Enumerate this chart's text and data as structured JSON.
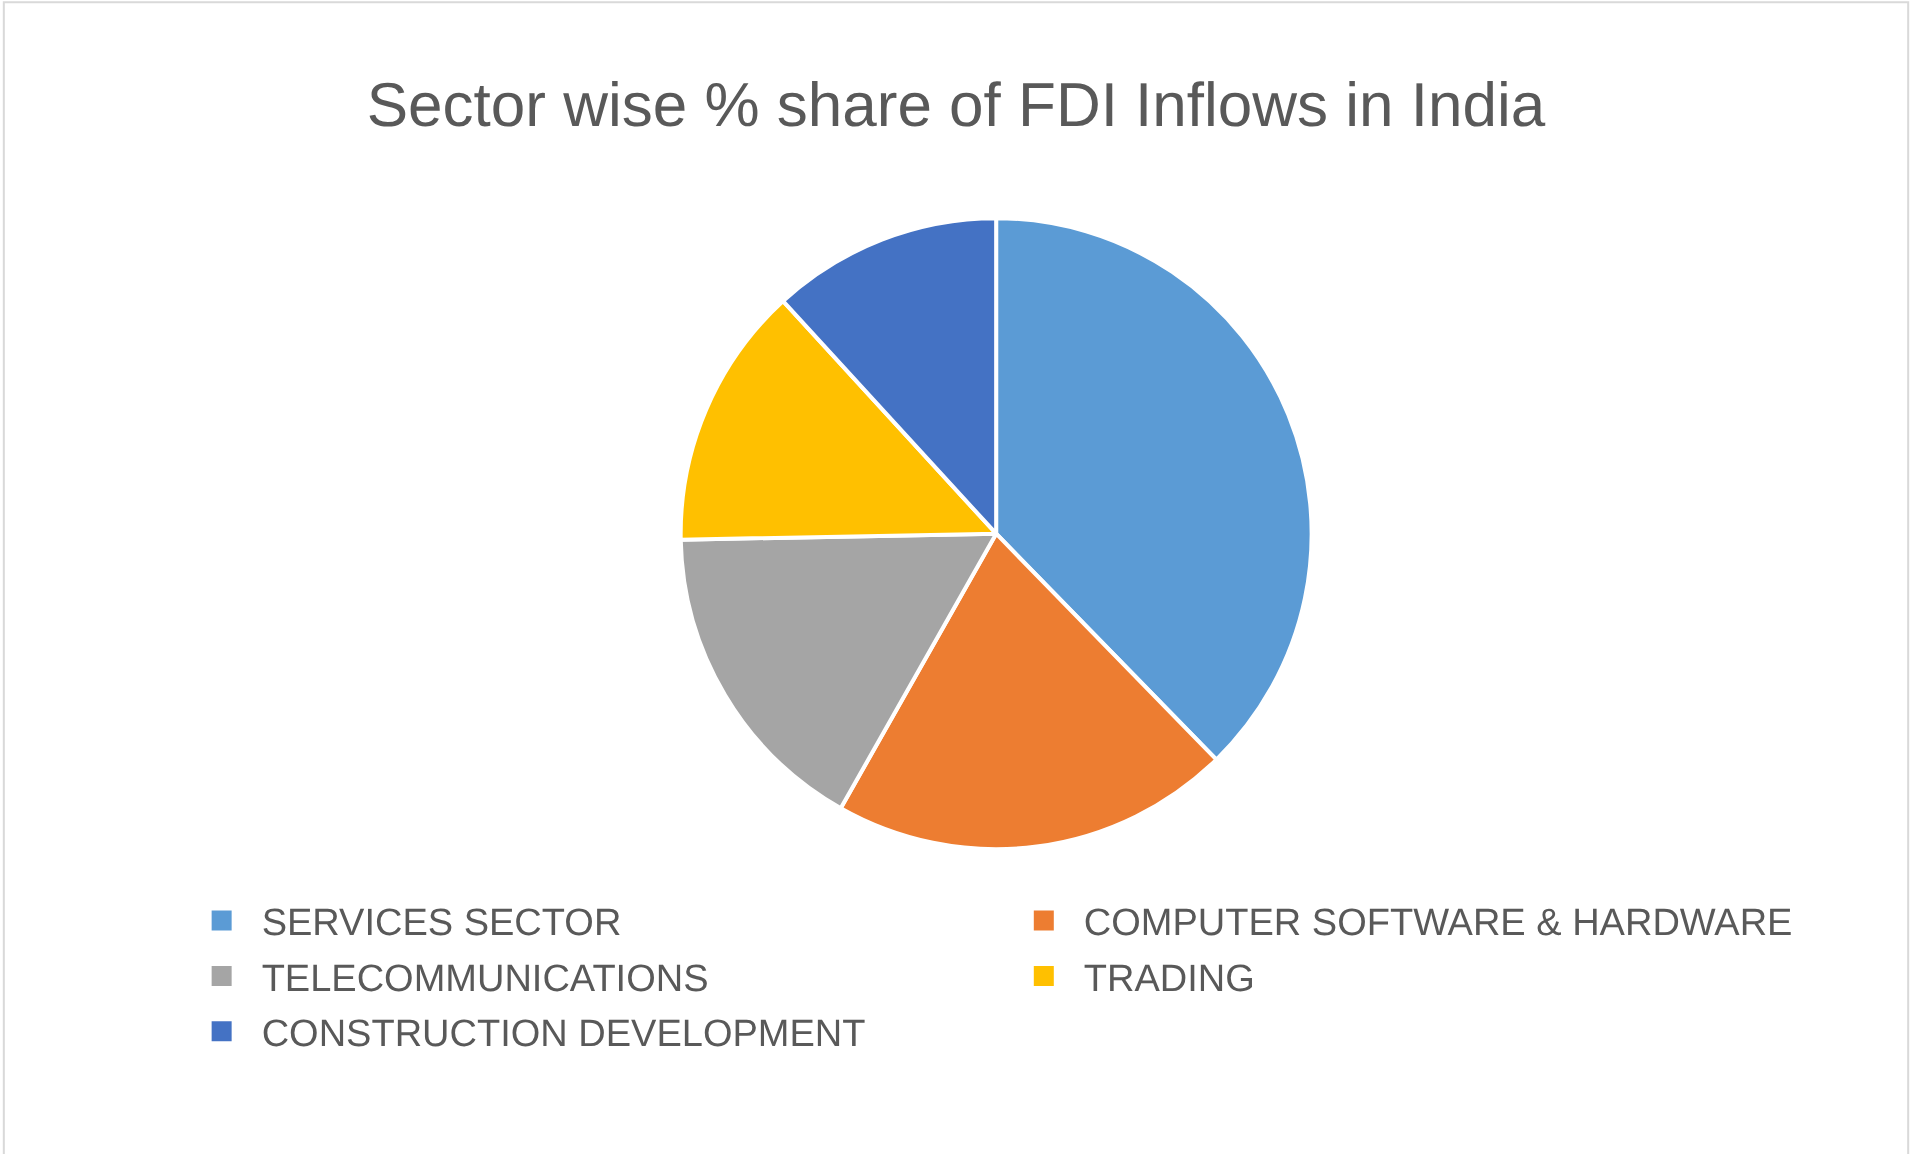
{
  "chart_data": {
    "type": "pie",
    "title": "Sector wise % share of FDI Inflows in India",
    "categories": [
      "SERVICES SECTOR",
      "COMPUTER SOFTWARE & HARDWARE",
      "TELECOMMUNICATIONS",
      "TRADING",
      "CONSTRUCTION DEVELOPMENT"
    ],
    "values": [
      37.7,
      20.5,
      16.5,
      13.5,
      11.8
    ],
    "colors": [
      "#5b9bd5",
      "#ed7d31",
      "#a5a5a5",
      "#ffc000",
      "#4472c4"
    ],
    "legend": "bottom"
  }
}
